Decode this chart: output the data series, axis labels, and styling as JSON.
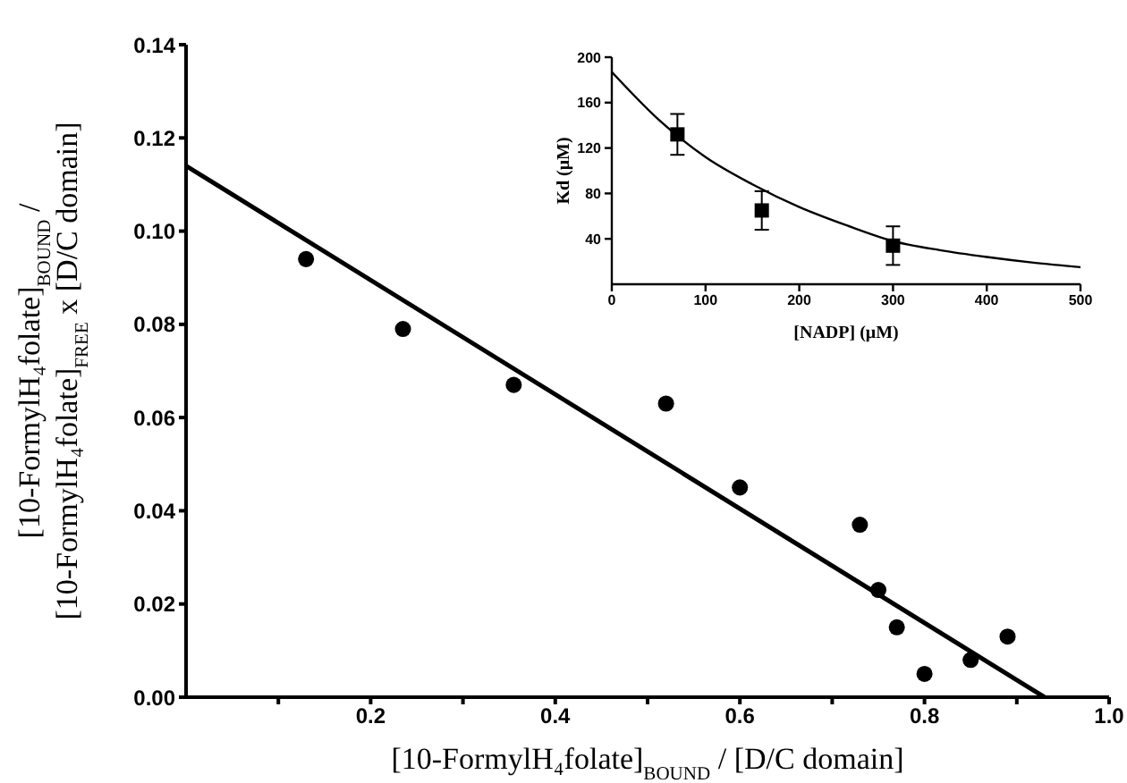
{
  "chart_data": [
    {
      "type": "scatter",
      "xlabel": "[10-FormylH₄folate]$_{BOUND}$ / [D/C domain]",
      "ylabel": "[10-FormylH₄folate]$_{BOUND}$ / [10-FormylH₄folate]$_{FREE}$ x [D/C domain]",
      "xlim": [
        0,
        1
      ],
      "xticks": [
        {
          "value": 0.1,
          "label": null
        },
        {
          "value": 0.2,
          "label": "0.2"
        },
        {
          "value": 0.3,
          "label": null
        },
        {
          "value": 0.4,
          "label": "0.4"
        },
        {
          "value": 0.5,
          "label": null
        },
        {
          "value": 0.6,
          "label": "0.6"
        },
        {
          "value": 0.7,
          "label": null
        },
        {
          "value": 0.8,
          "label": "0.8"
        },
        {
          "value": 0.9,
          "label": null
        },
        {
          "value": 1,
          "label": "1.0"
        }
      ],
      "ylim": [
        0,
        0.14
      ],
      "yticks": [
        {
          "value": 0,
          "label": "0.00"
        },
        {
          "value": 0.02,
          "label": "0.02"
        },
        {
          "value": 0.04,
          "label": "0.04"
        },
        {
          "value": 0.06,
          "label": "0.06"
        },
        {
          "value": 0.08,
          "label": "0.08"
        },
        {
          "value": 0.1,
          "label": "0.10"
        },
        {
          "value": 0.12,
          "label": "0.12"
        },
        {
          "value": 0.14,
          "label": "0.14"
        }
      ],
      "series": [
        {
          "marker": "circle",
          "color": "#000000",
          "x": [
            0.13,
            0.235,
            0.355,
            0.52,
            0.6,
            0.73,
            0.75,
            0.77,
            0.8,
            0.85,
            0.89
          ],
          "values": [
            0.094,
            0.079,
            0.067,
            0.063,
            0.045,
            0.037,
            0.023,
            0.015,
            0.005,
            0.008,
            0.013
          ]
        },
        {
          "type": "line",
          "marker": "none",
          "color": "#000000",
          "x": [
            0,
            0.93
          ],
          "values": [
            0.114,
            0
          ]
        }
      ]
    },
    {
      "type": "scatter",
      "xlabel": "[NADP]  (μM)",
      "ylabel": "Kd  (μM)",
      "xlim": [
        0,
        500
      ],
      "xticks": [
        0,
        100,
        200,
        300,
        400,
        500
      ],
      "ylim": [
        0,
        200
      ],
      "yticks": [
        40,
        80,
        120,
        160,
        200
      ],
      "series": [
        {
          "marker": "square",
          "color": "#000000",
          "x": [
            70,
            160,
            300
          ],
          "values": [
            132,
            65,
            34
          ],
          "errors": [
            18,
            17,
            17
          ]
        },
        {
          "type": "line",
          "marker": "none",
          "color": "#000000",
          "x": [
            0,
            50,
            100,
            150,
            200,
            250,
            300,
            350,
            400,
            450,
            500
          ],
          "values": [
            187,
            145,
            112,
            88,
            68,
            52,
            38,
            30,
            24,
            19,
            15
          ]
        }
      ]
    }
  ]
}
